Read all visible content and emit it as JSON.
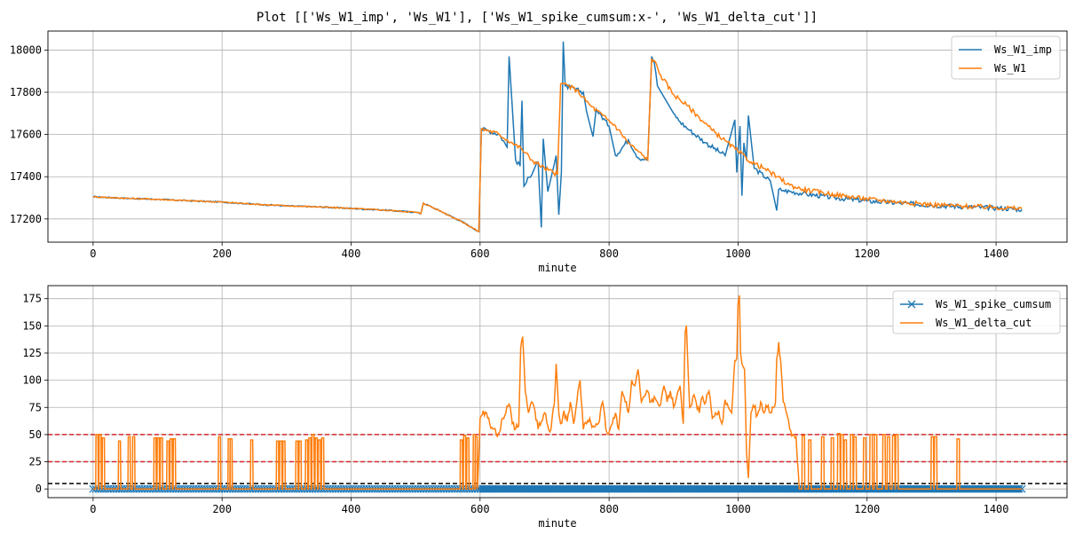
{
  "figure_title": "Plot [['Ws_W1_imp', 'Ws_W1'], ['Ws_W1_spike_cumsum:x-', 'Ws_W1_delta_cut']]",
  "colors": {
    "blue": "#1f77b4",
    "orange": "#ff7f0e",
    "red": "#d62728",
    "black": "#000000",
    "grid": "#b0b0b0"
  },
  "chart_data": [
    {
      "type": "line",
      "xlabel": "minute",
      "ylabel": "",
      "xlim": [
        -70,
        1510
      ],
      "ylim": [
        17090,
        18090
      ],
      "xticks": [
        0,
        200,
        400,
        600,
        800,
        1000,
        1200,
        1400
      ],
      "yticks": [
        17200,
        17400,
        17600,
        17800,
        18000
      ],
      "xtick_labels": [
        "0",
        "200",
        "400",
        "600",
        "800",
        "1000",
        "1200",
        "1400"
      ],
      "ytick_labels": [
        "17200",
        "17400",
        "17600",
        "17800",
        "18000"
      ],
      "grid": true,
      "legend": "top-right",
      "series": [
        {
          "name": "Ws_W1_imp",
          "color": "blue",
          "x": [
            0,
            50,
            100,
            150,
            200,
            250,
            300,
            350,
            400,
            450,
            500,
            508,
            512,
            540,
            570,
            598,
            602,
            612,
            630,
            642,
            645,
            655,
            662,
            665,
            668,
            690,
            695,
            698,
            705,
            715,
            718,
            722,
            726,
            729,
            732,
            760,
            765,
            775,
            780,
            800,
            810,
            830,
            845,
            860,
            866,
            870,
            875,
            900,
            910,
            925,
            950,
            980,
            995,
            998,
            1003,
            1006,
            1009,
            1013,
            1016,
            1025,
            1050,
            1060,
            1063,
            1070,
            1100,
            1150,
            1200,
            1250,
            1300,
            1350,
            1400,
            1440
          ],
          "y": [
            17305,
            17298,
            17293,
            17286,
            17280,
            17270,
            17262,
            17257,
            17250,
            17242,
            17232,
            17225,
            17275,
            17235,
            17190,
            17140,
            17625,
            17620,
            17600,
            17540,
            17970,
            17480,
            17450,
            17760,
            17355,
            17470,
            17160,
            17580,
            17330,
            17460,
            17500,
            17220,
            17420,
            18040,
            17830,
            17800,
            17710,
            17590,
            17720,
            17640,
            17500,
            17575,
            17490,
            17480,
            17970,
            17940,
            17830,
            17700,
            17660,
            17620,
            17560,
            17500,
            17670,
            17420,
            17640,
            17310,
            17560,
            17480,
            17690,
            17440,
            17380,
            17240,
            17340,
            17335,
            17320,
            17300,
            17285,
            17275,
            17265,
            17258,
            17252,
            17245
          ]
        },
        {
          "name": "Ws_W1",
          "color": "orange",
          "x": [
            0,
            50,
            100,
            150,
            200,
            250,
            300,
            350,
            400,
            450,
            500,
            508,
            512,
            540,
            570,
            598,
            602,
            612,
            630,
            650,
            665,
            680,
            700,
            720,
            725,
            730,
            750,
            770,
            790,
            810,
            830,
            845,
            860,
            866,
            870,
            880,
            900,
            920,
            940,
            960,
            980,
            1000,
            1020,
            1040,
            1060,
            1080,
            1100,
            1150,
            1200,
            1250,
            1300,
            1350,
            1400,
            1440
          ],
          "y": [
            17305,
            17298,
            17293,
            17286,
            17280,
            17270,
            17262,
            17257,
            17250,
            17242,
            17232,
            17225,
            17275,
            17235,
            17190,
            17140,
            17625,
            17620,
            17600,
            17560,
            17530,
            17480,
            17440,
            17410,
            17840,
            17840,
            17810,
            17740,
            17690,
            17640,
            17560,
            17520,
            17480,
            17960,
            17950,
            17880,
            17790,
            17740,
            17680,
            17620,
            17570,
            17520,
            17470,
            17440,
            17400,
            17360,
            17340,
            17315,
            17295,
            17280,
            17268,
            17260,
            17255,
            17248
          ]
        }
      ]
    },
    {
      "type": "line",
      "xlabel": "minute",
      "ylabel": "",
      "xlim": [
        -70,
        1510
      ],
      "ylim": [
        -8,
        187
      ],
      "xticks": [
        0,
        200,
        400,
        600,
        800,
        1000,
        1200,
        1400
      ],
      "yticks": [
        0,
        25,
        50,
        75,
        100,
        125,
        150,
        175
      ],
      "xtick_labels": [
        "0",
        "200",
        "400",
        "600",
        "800",
        "1000",
        "1200",
        "1400"
      ],
      "ytick_labels": [
        "0",
        "25",
        "50",
        "75",
        "100",
        "125",
        "150",
        "175"
      ],
      "grid": true,
      "legend": "top-right",
      "hlines": [
        {
          "y": 50,
          "color": "red",
          "style": "dashed"
        },
        {
          "y": 25,
          "color": "red",
          "style": "dashed"
        },
        {
          "y": 5,
          "color": "black",
          "style": "dashed"
        }
      ],
      "series": [
        {
          "name": "Ws_W1_spike_cumsum",
          "color": "blue",
          "marker": "x",
          "x_range": [
            0,
            1440
          ],
          "y": 0,
          "sparse_markers_x": [
            0,
            1440
          ]
        },
        {
          "name": "Ws_W1_delta_cut",
          "color": "orange",
          "spikes": [
            [
              5,
              50
            ],
            [
              10,
              50
            ],
            [
              15,
              47
            ],
            [
              40,
              44
            ],
            [
              55,
              48
            ],
            [
              62,
              48
            ],
            [
              95,
              47
            ],
            [
              100,
              47
            ],
            [
              105,
              47
            ],
            [
              115,
              44
            ],
            [
              120,
              46
            ],
            [
              125,
              46
            ],
            [
              195,
              48
            ],
            [
              210,
              46
            ],
            [
              213,
              46
            ],
            [
              245,
              45
            ],
            [
              285,
              44
            ],
            [
              290,
              44
            ],
            [
              295,
              44
            ],
            [
              315,
              44
            ],
            [
              320,
              44
            ],
            [
              330,
              45
            ],
            [
              335,
              47
            ],
            [
              340,
              50
            ],
            [
              345,
              47
            ],
            [
              350,
              45
            ],
            [
              355,
              47
            ],
            [
              570,
              45
            ],
            [
              575,
              49
            ],
            [
              580,
              47
            ],
            [
              590,
              50
            ],
            [
              593,
              48
            ],
            [
              1100,
              49
            ],
            [
              1110,
              45
            ],
            [
              1130,
              48
            ],
            [
              1145,
              47
            ],
            [
              1155,
              51
            ],
            [
              1160,
              50
            ],
            [
              1165,
              45
            ],
            [
              1175,
              50
            ],
            [
              1180,
              48
            ],
            [
              1195,
              47
            ],
            [
              1205,
              50
            ],
            [
              1212,
              50
            ],
            [
              1225,
              50
            ],
            [
              1232,
              48
            ],
            [
              1240,
              49
            ],
            [
              1245,
              50
            ],
            [
              1300,
              48
            ],
            [
              1305,
              48
            ],
            [
              1340,
              46
            ]
          ],
          "x": [
            596,
            600,
            605,
            610,
            615,
            620,
            625,
            630,
            635,
            640,
            645,
            650,
            655,
            660,
            663,
            666,
            670,
            675,
            680,
            685,
            690,
            695,
            700,
            705,
            710,
            715,
            718,
            722,
            725,
            730,
            735,
            740,
            745,
            750,
            755,
            760,
            765,
            770,
            775,
            780,
            785,
            790,
            795,
            800,
            805,
            810,
            815,
            820,
            825,
            830,
            835,
            840,
            845,
            850,
            855,
            860,
            865,
            870,
            875,
            880,
            885,
            890,
            895,
            900,
            905,
            910,
            915,
            918,
            920,
            925,
            930,
            935,
            940,
            945,
            950,
            955,
            960,
            965,
            970,
            975,
            980,
            985,
            990,
            995,
            998,
            1000,
            1002,
            1004,
            1006,
            1010,
            1013,
            1016,
            1020,
            1025,
            1030,
            1035,
            1040,
            1045,
            1050,
            1055,
            1058,
            1060,
            1063,
            1066,
            1070,
            1075,
            1080,
            1085,
            1090,
            1095
          ],
          "y": [
            0,
            65,
            72,
            70,
            60,
            55,
            50,
            52,
            65,
            70,
            78,
            60,
            55,
            58,
            130,
            140,
            90,
            70,
            80,
            72,
            55,
            62,
            70,
            58,
            55,
            78,
            115,
            70,
            60,
            72,
            62,
            80,
            60,
            80,
            100,
            55,
            60,
            65,
            58,
            60,
            62,
            80,
            55,
            52,
            60,
            70,
            55,
            90,
            80,
            70,
            100,
            95,
            110,
            80,
            85,
            90,
            80,
            85,
            80,
            78,
            95,
            80,
            90,
            75,
            85,
            95,
            60,
            145,
            150,
            75,
            85,
            80,
            70,
            85,
            80,
            90,
            65,
            70,
            72,
            60,
            82,
            75,
            70,
            118,
            120,
            170,
            178,
            125,
            115,
            110,
            35,
            10,
            70,
            75,
            68,
            80,
            70,
            75,
            70,
            75,
            80,
            120,
            135,
            118,
            80,
            70,
            55,
            50,
            48,
            0
          ]
        }
      ]
    }
  ]
}
